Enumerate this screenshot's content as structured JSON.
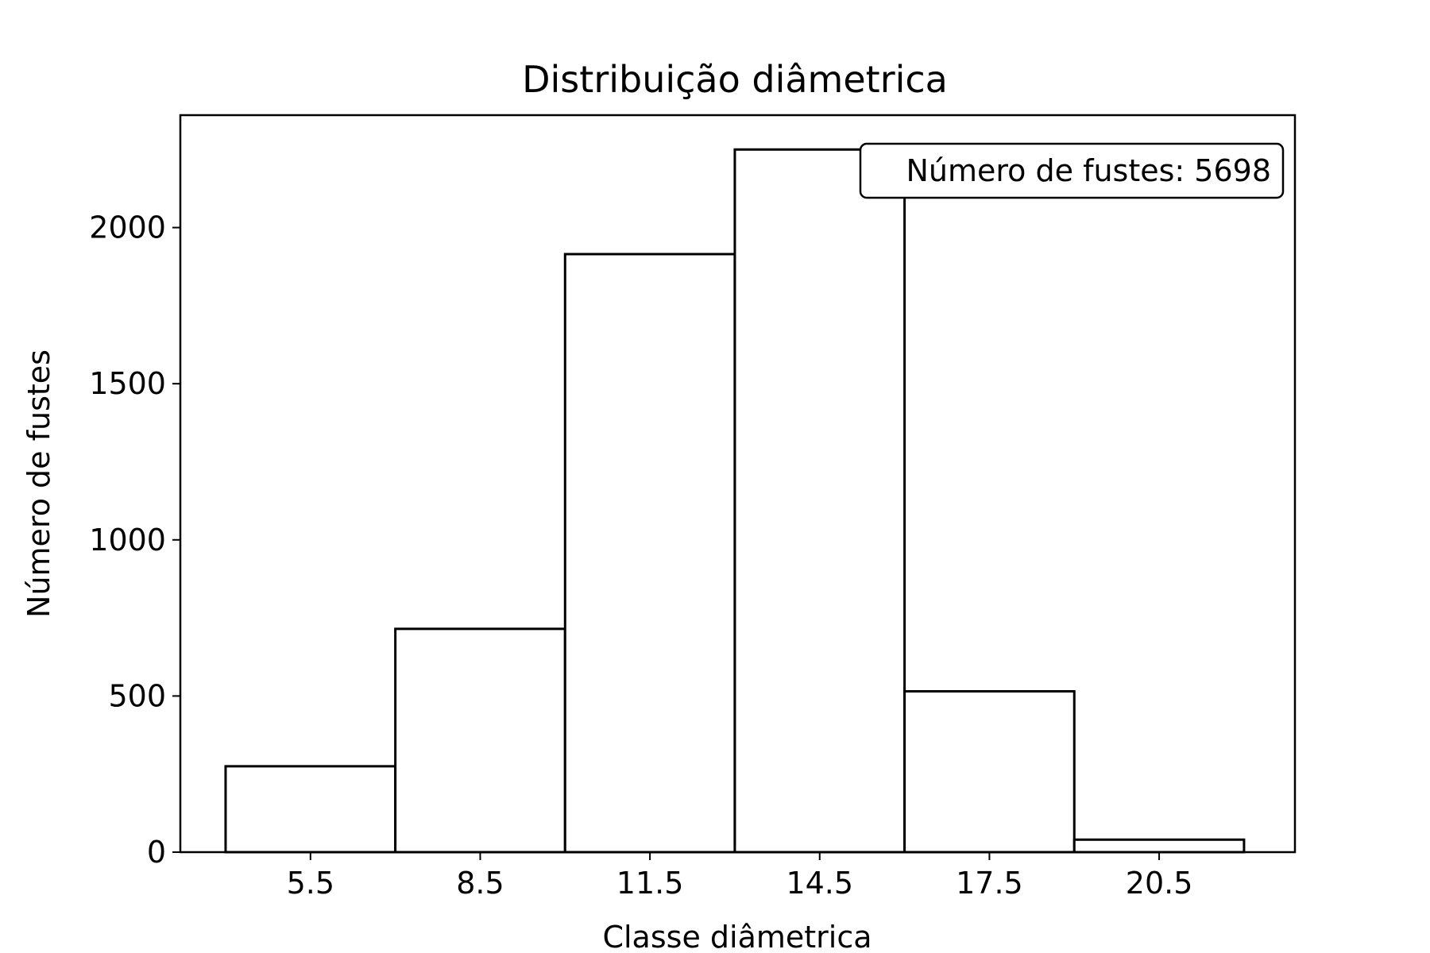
{
  "chart_data": {
    "type": "bar",
    "title": "Distribuição diâmetrica",
    "xlabel": "Classe diâmetrica",
    "ylabel": "Número de fustes",
    "categories": [
      "5.5",
      "8.5",
      "11.5",
      "14.5",
      "17.5",
      "20.5"
    ],
    "x": [
      5.5,
      8.5,
      11.5,
      14.5,
      17.5,
      20.5
    ],
    "bin_width": 3,
    "values": [
      275,
      715,
      1915,
      2250,
      515,
      40
    ],
    "xlim": [
      3.2,
      22.9
    ],
    "ylim": [
      0,
      2360
    ],
    "yticks": [
      0,
      500,
      1000,
      1500,
      2000
    ],
    "ytick_labels": [
      "0",
      "500",
      "1000",
      "1500",
      "2000"
    ],
    "grid": false,
    "annotation": "Número de fustes: 5698",
    "annotation_position": "top-right",
    "bar_fill": "#ffffff",
    "bar_edge": "#000000"
  }
}
